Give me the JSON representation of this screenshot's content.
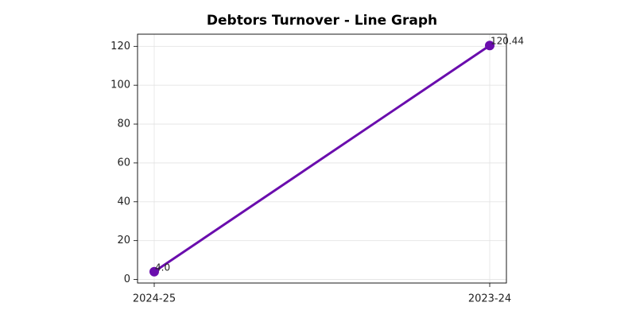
{
  "chart_data": {
    "type": "line",
    "title": "Debtors Turnover - Line Graph",
    "categories": [
      "2024-25",
      "2023-24"
    ],
    "values": [
      4.0,
      120.44
    ],
    "value_labels": [
      "4.0",
      "120.44"
    ],
    "color": "#6a0dad",
    "ylim": [
      -1.82,
      126.26
    ],
    "yticks": [
      0,
      20,
      40,
      60,
      80,
      100,
      120
    ],
    "grid": true
  }
}
